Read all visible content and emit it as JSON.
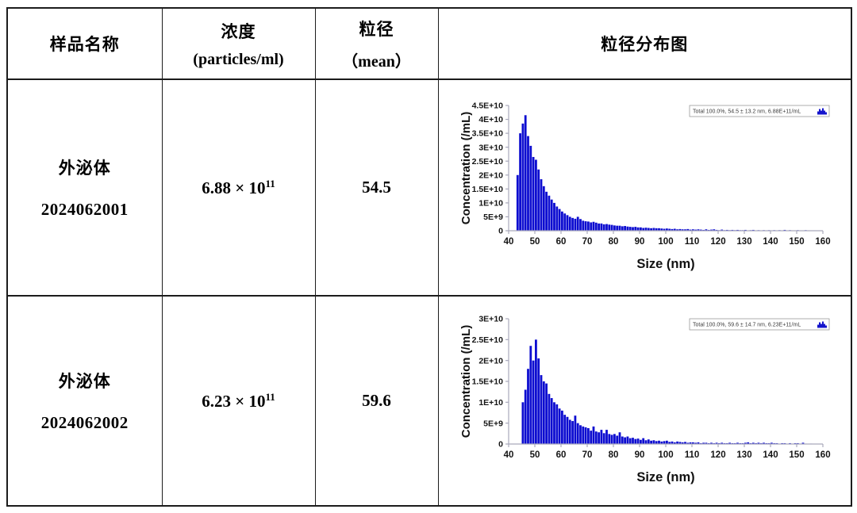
{
  "table": {
    "headers": {
      "sample_name": "样品名称",
      "concentration_line1": "浓度",
      "concentration_line2": "(particles/ml)",
      "size_line1": "粒径",
      "size_line2": "（mean）",
      "distribution": "粒径分布图"
    },
    "rows": [
      {
        "name_line1": "外泌体",
        "name_line2": "2024062001",
        "concentration_base": "6.88 × 10",
        "concentration_exp": "11",
        "size_mean": "54.5"
      },
      {
        "name_line1": "外泌体",
        "name_line2": "2024062002",
        "concentration_base": "6.23 × 10",
        "concentration_exp": "11",
        "size_mean": "59.6"
      }
    ]
  },
  "chart_data": [
    {
      "type": "bar",
      "title": "",
      "xlabel": "Size (nm)",
      "ylabel": "Concentration (/mL)",
      "legend": "Total  100.0%,  54.5 ± 13.2 nm,  6.88E+11/mL",
      "legend_position": "top-right",
      "grid": false,
      "bar_color": "#0d0dd0",
      "axis_color": "#a9a9bb",
      "xlim": [
        40,
        160
      ],
      "ylim_e9": 45,
      "x_ticks": [
        40,
        50,
        60,
        70,
        80,
        90,
        100,
        110,
        120,
        130,
        140,
        150,
        160
      ],
      "y_tick_vals_e9": [
        0,
        5,
        10,
        15,
        20,
        25,
        30,
        35,
        40,
        45
      ],
      "y_tick_labels": [
        "0",
        "5E+9",
        "1E+10",
        "1.5E+10",
        "2E+10",
        "2.5E+10",
        "3E+10",
        "3.5E+10",
        "4E+10",
        "4.5E+10"
      ],
      "bin_start": 43,
      "bin_width": 1,
      "values_e9": [
        20,
        35,
        38.5,
        41.5,
        34,
        30.5,
        26.5,
        25.5,
        22,
        18.5,
        16,
        14,
        12.6,
        11.2,
        10,
        8.7,
        7.8,
        6.9,
        6.2,
        5.6,
        5,
        4.6,
        4.3,
        5,
        4.2,
        3.6,
        3.4,
        3.3,
        3,
        3.2,
        2.9,
        2.6,
        2.6,
        2.3,
        2.4,
        2.2,
        2.1,
        1.9,
        1.8,
        1.8,
        1.6,
        1.7,
        1.5,
        1.4,
        1.3,
        1.4,
        1.2,
        1.2,
        1,
        1.1,
        1,
        0.9,
        1,
        0.9,
        0.9,
        0.8,
        0.7,
        0.8,
        0.7,
        0.6,
        0.7,
        0.5,
        0.6,
        0.5,
        0.5,
        0.6,
        0.4,
        0.5,
        0.4,
        0.5,
        0.4,
        0.3,
        0.5,
        0.3,
        0.4,
        0.5,
        0.3,
        0.2,
        0.4,
        0.2,
        0.3,
        0.2,
        0.3,
        0.2,
        0.3,
        0.2,
        0.2,
        0.3,
        0.1,
        0.2,
        0.3,
        0.1,
        0.2,
        0.1,
        0.2,
        0.1,
        0.2,
        0.1,
        0.2,
        0.1,
        0.2,
        0.1,
        0.3,
        0.1,
        0.2,
        0.1,
        0.1,
        0.2,
        0.1,
        0.1,
        0.2,
        0.1,
        0.1,
        0.1,
        0.1,
        0.1,
        0.1
      ]
    },
    {
      "type": "bar",
      "title": "",
      "xlabel": "Size (nm)",
      "ylabel": "Concentration (/mL)",
      "legend": "Total  100.0%,  59.6 ± 14.7 nm,  6.23E+11/mL",
      "legend_position": "top-right",
      "grid": false,
      "bar_color": "#0d0dd0",
      "axis_color": "#a9a9bb",
      "xlim": [
        40,
        160
      ],
      "ylim_e9": 30,
      "x_ticks": [
        40,
        50,
        60,
        70,
        80,
        90,
        100,
        110,
        120,
        130,
        140,
        150,
        160
      ],
      "y_tick_vals_e9": [
        0,
        5,
        10,
        15,
        20,
        25,
        30
      ],
      "y_tick_labels": [
        "0",
        "5E+9",
        "1E+10",
        "1.5E+10",
        "2E+10",
        "2.5E+10",
        "3E+10"
      ],
      "bin_start": 45,
      "bin_width": 1,
      "values_e9": [
        10,
        13,
        18,
        23.5,
        20,
        25,
        20.5,
        16.5,
        15,
        14.5,
        12,
        11,
        10,
        9.5,
        8.5,
        8,
        7,
        6.5,
        5.8,
        5.5,
        6.8,
        5,
        4.5,
        4.2,
        4,
        3.8,
        3.2,
        4.2,
        3,
        2.8,
        3.4,
        2.6,
        3.4,
        2.4,
        2.2,
        2.4,
        2,
        2.8,
        1.8,
        1.6,
        1.8,
        1.4,
        1.5,
        1.2,
        1.3,
        1,
        1.4,
        0.9,
        1.1,
        0.8,
        0.9,
        0.7,
        0.8,
        0.6,
        0.7,
        0.8,
        0.5,
        0.6,
        0.4,
        0.6,
        0.5,
        0.4,
        0.5,
        0.3,
        0.4,
        0.4,
        0.3,
        0.4,
        0.2,
        0.3,
        0.3,
        0.2,
        0.3,
        0.2,
        0.3,
        0.2,
        0.3,
        0.2,
        0.2,
        0.3,
        0.2,
        0.2,
        0.3,
        0.2,
        0.2,
        0.3,
        0.4,
        0.2,
        0.3,
        0.2,
        0.3,
        0.2,
        0.3,
        0.2,
        0.2,
        0.3,
        0.2,
        0.2,
        0.1,
        0.2,
        0.2,
        0.1,
        0.2,
        0.1,
        0.2,
        0.2,
        0.1,
        0.3,
        0.1,
        0,
        0.1,
        0,
        0,
        0,
        0
      ]
    }
  ]
}
